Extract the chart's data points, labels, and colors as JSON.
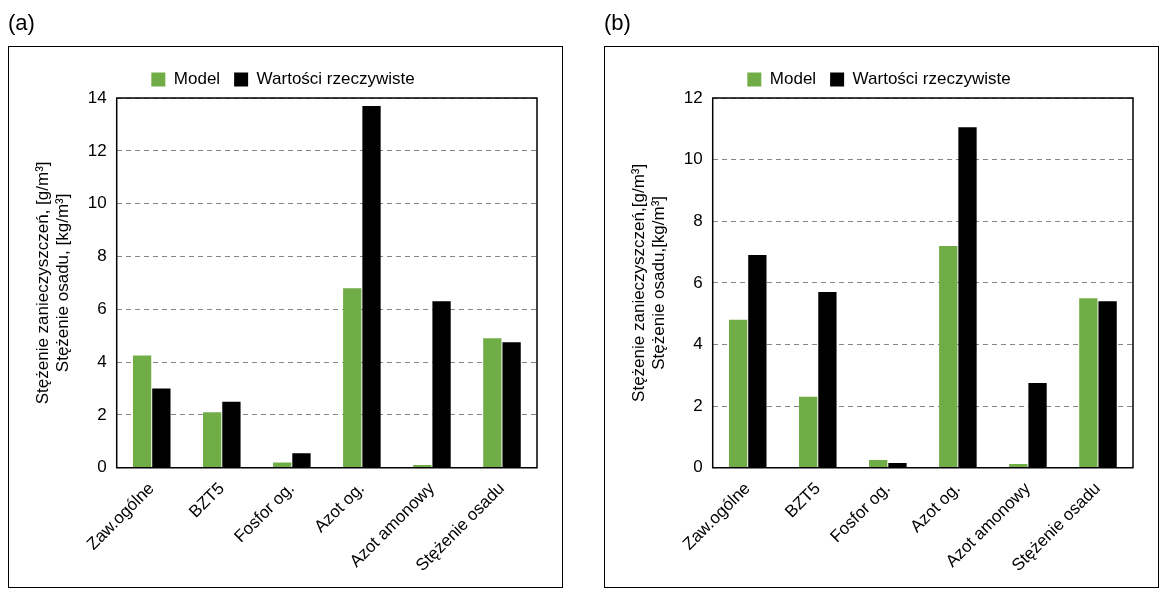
{
  "chart_data": [
    {
      "type": "bar",
      "title": "(a)",
      "ylabel": "Stężenie zanieczyszczeń, [g/m³]\nStężenie osadu, [kg/m³]",
      "categories": [
        "Zaw.ogólne",
        "BZT5",
        "Fosfor og.",
        "Azot og.",
        "Azot amonowy",
        "Stężenie osadu"
      ],
      "series": [
        {
          "name": "Model",
          "color": "#70ad47",
          "values": [
            4.25,
            2.1,
            0.2,
            6.8,
            0.1,
            4.9
          ]
        },
        {
          "name": "Wartości rzeczywiste",
          "color": "#000000",
          "values": [
            3.0,
            2.5,
            0.55,
            13.7,
            6.3,
            4.75
          ]
        }
      ],
      "ylim": [
        0,
        14
      ],
      "yticks": [
        0,
        2,
        4,
        6,
        8,
        10,
        12,
        14
      ],
      "grid": "y",
      "legend": "top"
    },
    {
      "type": "bar",
      "title": "(b)",
      "ylabel": "Stężenie zanieczyszczeń,[g/m³]\nStężenie osadu,[kg/m³]",
      "categories": [
        "Zaw.ogólne",
        "BZT5",
        "Fosfor og.",
        "Azot og.",
        "Azot amonowy",
        "Stężenie osadu"
      ],
      "series": [
        {
          "name": "Model",
          "color": "#70ad47",
          "values": [
            4.8,
            2.3,
            0.25,
            7.2,
            0.12,
            5.5
          ]
        },
        {
          "name": "Wartości rzeczywiste",
          "color": "#000000",
          "values": [
            6.9,
            5.7,
            0.15,
            11.05,
            2.75,
            5.4
          ]
        }
      ],
      "ylim": [
        0,
        12
      ],
      "yticks": [
        0,
        2,
        4,
        6,
        8,
        10,
        12
      ],
      "grid": "y",
      "legend": "top"
    }
  ]
}
